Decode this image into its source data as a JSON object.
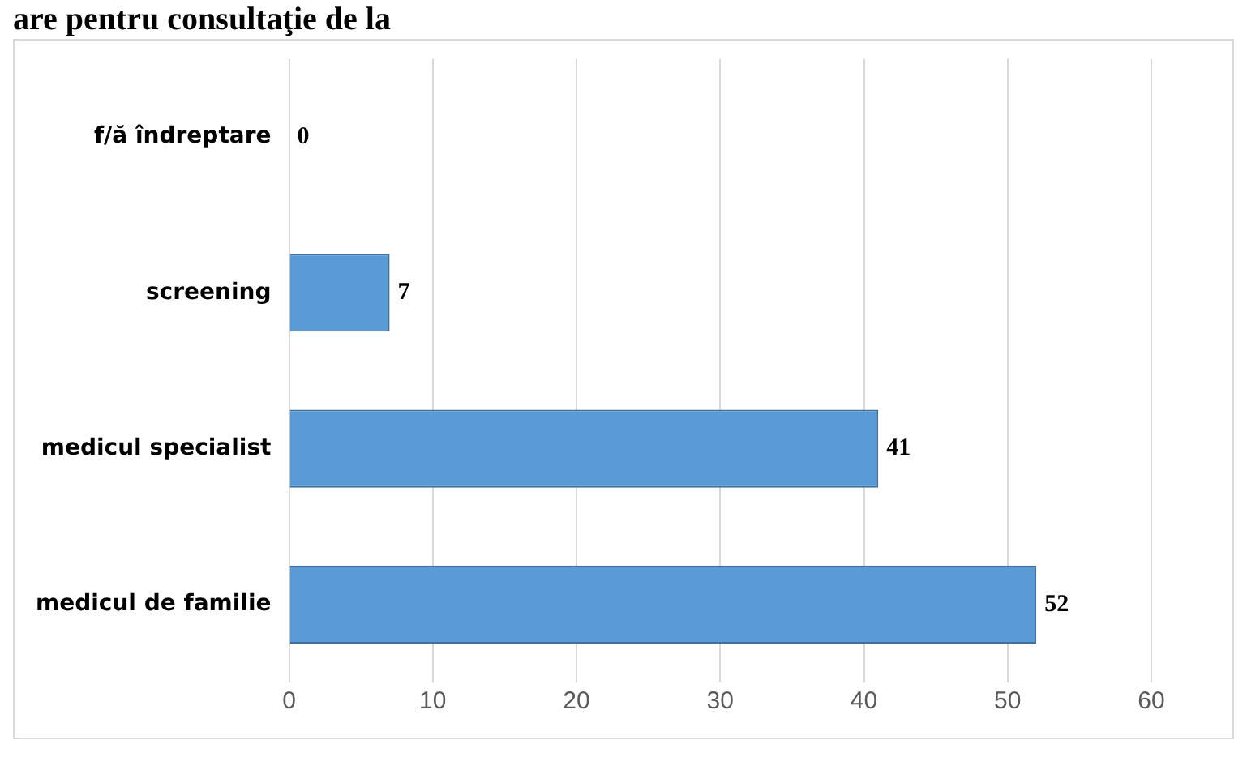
{
  "chart_data": {
    "type": "bar",
    "orientation": "horizontal",
    "title": "are pentru consultaţie de la",
    "categories": [
      "f/ă îndreptare",
      "screening",
      "medicul specialist",
      "medicul de familie"
    ],
    "values": [
      0,
      7,
      41,
      52
    ],
    "color": "#5b9bd5",
    "xlim": [
      0,
      60
    ],
    "xticks": [
      0,
      10,
      20,
      30,
      40,
      50,
      60
    ],
    "grid": "x",
    "legend": false,
    "data_labels": true
  }
}
